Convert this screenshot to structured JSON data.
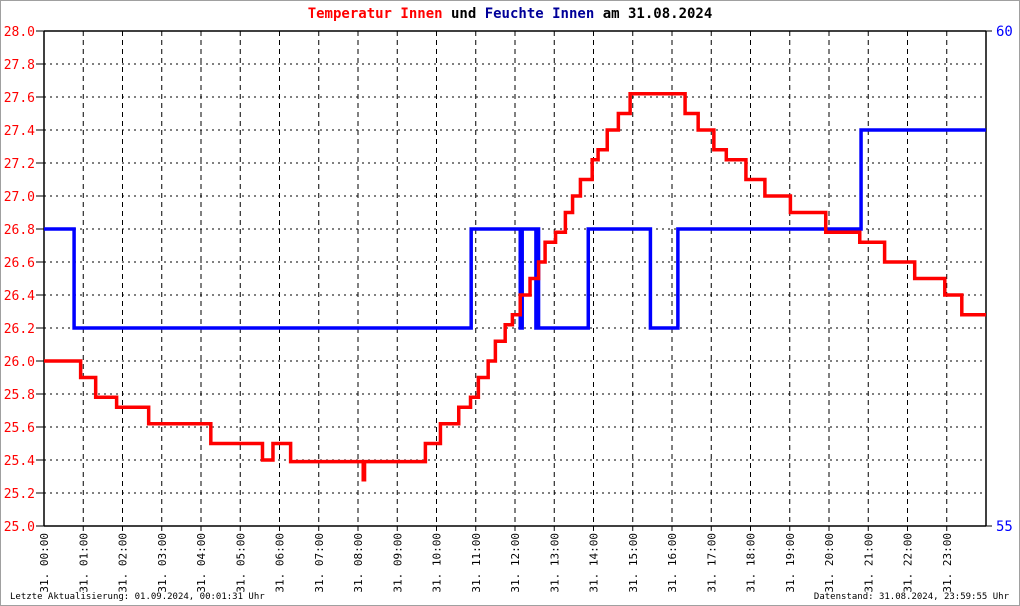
{
  "chart_data": {
    "type": "line",
    "title": {
      "parts": [
        {
          "text": "Temperatur Innen",
          "color": "#ff0000"
        },
        {
          "text": " und ",
          "color": "#000000"
        },
        {
          "text": "Feuchte Innen",
          "color": "#000099"
        },
        {
          "text": " am 31.08.2024",
          "color": "#000000"
        }
      ]
    },
    "x_range": [
      "00:00",
      "24:00"
    ],
    "x_tick_labels": [
      "31. 00:00",
      "31. 01:00",
      "31. 02:00",
      "31. 03:00",
      "31. 04:00",
      "31. 05:00",
      "31. 06:00",
      "31. 07:00",
      "31. 08:00",
      "31. 09:00",
      "31. 10:00",
      "31. 11:00",
      "31. 12:00",
      "31. 13:00",
      "31. 14:00",
      "31. 15:00",
      "31. 16:00",
      "31. 17:00",
      "31. 18:00",
      "31. 19:00",
      "31. 20:00",
      "31. 21:00",
      "31. 22:00",
      "31. 23:00"
    ],
    "y_left": {
      "range": [
        25.0,
        28.0
      ],
      "step": 0.2,
      "color": "#ff0000",
      "tick_labels": [
        "25.0",
        "25.2",
        "25.4",
        "25.6",
        "25.8",
        "26.0",
        "26.2",
        "26.4",
        "26.6",
        "26.8",
        "27.0",
        "27.2",
        "27.4",
        "27.6",
        "27.8",
        "28.0"
      ]
    },
    "y_right": {
      "range": [
        55,
        60
      ],
      "color": "#0000ff",
      "tick_labels": [
        "55",
        "60"
      ]
    },
    "grid": true,
    "step": true,
    "series": [
      {
        "name": "Temperatur Innen",
        "axis": "left",
        "color": "#ff0000",
        "points": [
          [
            "00:00",
            26.0
          ],
          [
            "00:56",
            25.9
          ],
          [
            "01:19",
            25.78
          ],
          [
            "01:51",
            25.72
          ],
          [
            "02:40",
            25.62
          ],
          [
            "04:15",
            25.5
          ],
          [
            "05:34",
            25.4
          ],
          [
            "05:50",
            25.5
          ],
          [
            "06:17",
            25.39
          ],
          [
            "08:08",
            25.28
          ],
          [
            "08:10",
            25.39
          ],
          [
            "09:43",
            25.5
          ],
          [
            "10:06",
            25.62
          ],
          [
            "10:34",
            25.72
          ],
          [
            "10:52",
            25.78
          ],
          [
            "11:04",
            25.9
          ],
          [
            "11:19",
            26.0
          ],
          [
            "11:30",
            26.12
          ],
          [
            "11:45",
            26.22
          ],
          [
            "11:56",
            26.28
          ],
          [
            "12:08",
            26.4
          ],
          [
            "12:23",
            26.5
          ],
          [
            "12:36",
            26.6
          ],
          [
            "12:46",
            26.72
          ],
          [
            "13:02",
            26.78
          ],
          [
            "13:17",
            26.9
          ],
          [
            "13:28",
            27.0
          ],
          [
            "13:40",
            27.1
          ],
          [
            "13:58",
            27.22
          ],
          [
            "14:07",
            27.28
          ],
          [
            "14:21",
            27.4
          ],
          [
            "14:38",
            27.5
          ],
          [
            "14:56",
            27.62
          ],
          [
            "16:20",
            27.5
          ],
          [
            "16:40",
            27.4
          ],
          [
            "17:04",
            27.28
          ],
          [
            "17:23",
            27.22
          ],
          [
            "17:53",
            27.1
          ],
          [
            "18:22",
            27.0
          ],
          [
            "19:01",
            26.9
          ],
          [
            "19:55",
            26.78
          ],
          [
            "20:47",
            26.72
          ],
          [
            "21:25",
            26.6
          ],
          [
            "22:11",
            26.5
          ],
          [
            "22:57",
            26.4
          ],
          [
            "23:23",
            26.28
          ],
          [
            "23:59",
            26.28
          ]
        ]
      },
      {
        "name": "Feuchte Innen",
        "axis": "right",
        "color": "#0000ff",
        "points": [
          [
            "00:00",
            58
          ],
          [
            "00:46",
            57
          ],
          [
            "10:53",
            58
          ],
          [
            "12:08",
            57
          ],
          [
            "12:11",
            58
          ],
          [
            "12:32",
            57
          ],
          [
            "12:34",
            58
          ],
          [
            "12:36",
            57
          ],
          [
            "13:52",
            58
          ],
          [
            "15:27",
            57
          ],
          [
            "16:09",
            58
          ],
          [
            "20:49",
            59
          ],
          [
            "23:59",
            59
          ]
        ]
      }
    ]
  },
  "footer": {
    "left": "Letzte Aktualisierung: 01.09.2024, 00:01:31 Uhr",
    "right": "Datenstand: 31.08.2024, 23:59:55 Uhr"
  }
}
